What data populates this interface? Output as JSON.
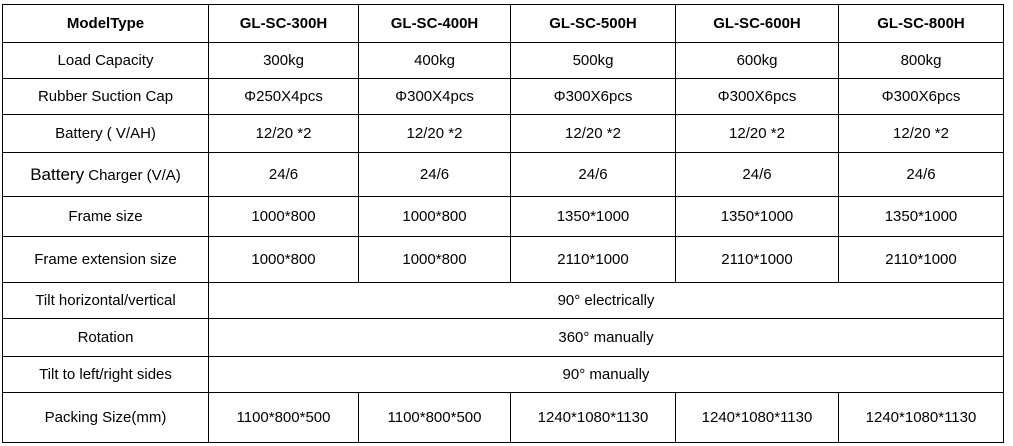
{
  "table": {
    "header": [
      "ModelType",
      "GL-SC-300H",
      "GL-SC-400H",
      "GL-SC-500H",
      "GL-SC-600H",
      "GL-SC-800H"
    ],
    "rows": [
      [
        "Load Capacity",
        "300kg",
        "400kg",
        "500kg",
        "600kg",
        "800kg"
      ],
      [
        "Rubber Suction Cap",
        "Φ250X4pcs",
        "Φ300X4pcs",
        "Φ300X6pcs",
        "Φ300X6pcs",
        "Φ300X6pcs"
      ],
      [
        "Battery ( V/AH)",
        "12/20 *2",
        "12/20 *2",
        "12/20 *2",
        "12/20 *2",
        "12/20 *2"
      ],
      [
        [
          "Battery",
          " Charger (V/A)"
        ],
        "24/6",
        "24/6",
        "24/6",
        "24/6",
        "24/6"
      ],
      [
        "Frame size",
        "1000*800",
        "1000*800",
        "1350*1000",
        "1350*1000",
        "1350*1000"
      ],
      [
        "Frame extension size",
        "1000*800",
        "1000*800",
        "2110*1000",
        "2110*1000",
        "2110*1000"
      ],
      [
        "Tilt horizontal/vertical",
        "90°  electrically"
      ],
      [
        "Rotation",
        "360° manually"
      ],
      [
        "Tilt to left/right sides",
        "90° manually"
      ],
      [
        "Packing Size(mm)",
        "1100*800*500",
        "1100*800*500",
        "1240*1080*1130",
        "1240*1080*1130",
        "1240*1080*1130"
      ]
    ]
  }
}
